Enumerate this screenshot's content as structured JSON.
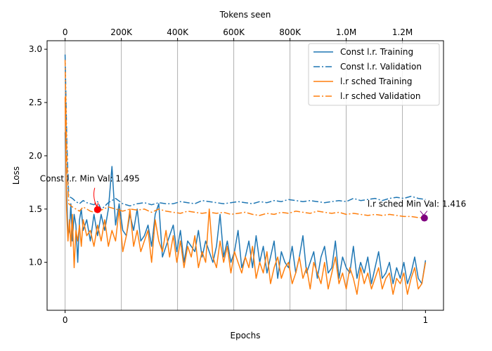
{
  "chart_data": {
    "type": "line",
    "xlabel": "Epochs",
    "ylabel": "Loss",
    "secondary_xlabel": "Tokens seen",
    "xlim": [
      -0.05,
      1.05
    ],
    "ylim": [
      0.55,
      3.08
    ],
    "x_ticks": [
      {
        "value": 0,
        "label": "0"
      },
      {
        "value": 1,
        "label": "1"
      }
    ],
    "y_ticks": [
      {
        "value": 1.0,
        "label": "1.0"
      },
      {
        "value": 1.5,
        "label": "1.5"
      },
      {
        "value": 2.0,
        "label": "2.0"
      },
      {
        "value": 2.5,
        "label": "2.5"
      },
      {
        "value": 3.0,
        "label": "3.0"
      }
    ],
    "top_ticks": [
      {
        "value": 0.0,
        "label": "0"
      },
      {
        "value": 0.156,
        "label": "200K"
      },
      {
        "value": 0.312,
        "label": "400K"
      },
      {
        "value": 0.468,
        "label": "600K"
      },
      {
        "value": 0.624,
        "label": "800K"
      },
      {
        "value": 0.78,
        "label": "1.0M"
      },
      {
        "value": 0.936,
        "label": "1.2M"
      }
    ],
    "grid": "vertical lines at top-axis ticks",
    "legend_position": "top-right",
    "series": [
      {
        "name": "Const l.r. Training",
        "color": "#1f77b4",
        "style": "solid",
        "x": [
          0,
          0.004,
          0.008,
          0.012,
          0.016,
          0.02,
          0.025,
          0.03,
          0.035,
          0.04,
          0.045,
          0.05,
          0.06,
          0.07,
          0.08,
          0.09,
          0.1,
          0.11,
          0.12,
          0.13,
          0.14,
          0.15,
          0.16,
          0.17,
          0.18,
          0.19,
          0.2,
          0.21,
          0.22,
          0.23,
          0.24,
          0.25,
          0.26,
          0.27,
          0.28,
          0.29,
          0.3,
          0.31,
          0.32,
          0.33,
          0.34,
          0.35,
          0.36,
          0.37,
          0.38,
          0.39,
          0.4,
          0.41,
          0.42,
          0.43,
          0.44,
          0.45,
          0.46,
          0.47,
          0.48,
          0.49,
          0.5,
          0.51,
          0.52,
          0.53,
          0.54,
          0.55,
          0.56,
          0.57,
          0.58,
          0.59,
          0.6,
          0.61,
          0.62,
          0.63,
          0.64,
          0.65,
          0.66,
          0.67,
          0.68,
          0.69,
          0.7,
          0.71,
          0.72,
          0.73,
          0.74,
          0.75,
          0.76,
          0.77,
          0.78,
          0.79,
          0.8,
          0.81,
          0.82,
          0.83,
          0.84,
          0.85,
          0.86,
          0.87,
          0.88,
          0.89,
          0.9,
          0.91,
          0.92,
          0.93,
          0.94,
          0.95,
          0.96,
          0.97,
          0.98,
          0.99,
          1.0
        ],
        "y": [
          2.22,
          1.7,
          1.25,
          1.3,
          1.55,
          1.2,
          1.45,
          1.35,
          1.0,
          1.4,
          1.5,
          1.3,
          1.4,
          1.2,
          1.45,
          1.25,
          1.45,
          1.3,
          1.5,
          1.9,
          1.35,
          1.55,
          1.3,
          1.25,
          1.45,
          1.3,
          1.5,
          1.2,
          1.25,
          1.35,
          1.15,
          1.45,
          1.55,
          1.05,
          1.15,
          1.25,
          1.35,
          1.1,
          1.3,
          1.0,
          1.2,
          1.15,
          1.1,
          1.3,
          1.05,
          1.2,
          1.1,
          1.0,
          1.15,
          1.45,
          1.05,
          1.2,
          1.0,
          1.1,
          1.3,
          0.95,
          1.05,
          1.2,
          0.95,
          1.25,
          1.0,
          1.15,
          0.9,
          1.05,
          1.2,
          0.85,
          1.1,
          1.0,
          0.95,
          1.15,
          0.9,
          1.05,
          1.25,
          0.9,
          1.0,
          1.1,
          0.85,
          1.05,
          1.15,
          0.9,
          0.95,
          1.2,
          0.85,
          1.05,
          0.95,
          0.9,
          1.15,
          0.85,
          1.0,
          0.9,
          1.05,
          0.8,
          0.95,
          1.1,
          0.85,
          0.9,
          1.0,
          0.8,
          0.95,
          0.85,
          1.0,
          0.8,
          0.9,
          1.05,
          0.85,
          0.8,
          1.02
        ]
      },
      {
        "name": "Const l.r. Validation",
        "color": "#1f77b4",
        "style": "dashdot",
        "x": [
          0,
          0.005,
          0.01,
          0.02,
          0.03,
          0.04,
          0.05,
          0.06,
          0.07,
          0.08,
          0.09,
          0.1,
          0.12,
          0.14,
          0.16,
          0.18,
          0.2,
          0.22,
          0.24,
          0.26,
          0.28,
          0.3,
          0.32,
          0.34,
          0.36,
          0.38,
          0.4,
          0.42,
          0.44,
          0.46,
          0.48,
          0.5,
          0.52,
          0.54,
          0.56,
          0.58,
          0.6,
          0.62,
          0.64,
          0.66,
          0.68,
          0.7,
          0.72,
          0.74,
          0.76,
          0.78,
          0.8,
          0.82,
          0.84,
          0.86,
          0.88,
          0.9,
          0.92,
          0.94,
          0.96,
          0.98,
          1.0
        ],
        "y": [
          2.95,
          2.1,
          1.62,
          1.6,
          1.57,
          1.55,
          1.58,
          1.56,
          1.55,
          1.54,
          1.57,
          1.495,
          1.56,
          1.6,
          1.55,
          1.53,
          1.55,
          1.56,
          1.54,
          1.56,
          1.55,
          1.55,
          1.57,
          1.56,
          1.55,
          1.58,
          1.57,
          1.56,
          1.55,
          1.56,
          1.57,
          1.56,
          1.55,
          1.57,
          1.56,
          1.58,
          1.57,
          1.59,
          1.58,
          1.57,
          1.58,
          1.57,
          1.56,
          1.57,
          1.58,
          1.57,
          1.6,
          1.58,
          1.59,
          1.6,
          1.58,
          1.6,
          1.61,
          1.6,
          1.62,
          1.6,
          1.59
        ]
      },
      {
        "name": "l.r sched Training",
        "color": "#ff7f0e",
        "style": "solid",
        "x": [
          0,
          0.004,
          0.008,
          0.012,
          0.016,
          0.02,
          0.025,
          0.03,
          0.035,
          0.04,
          0.045,
          0.05,
          0.06,
          0.07,
          0.08,
          0.09,
          0.1,
          0.11,
          0.12,
          0.13,
          0.14,
          0.15,
          0.16,
          0.17,
          0.18,
          0.19,
          0.2,
          0.21,
          0.22,
          0.23,
          0.24,
          0.25,
          0.26,
          0.27,
          0.28,
          0.29,
          0.3,
          0.31,
          0.32,
          0.33,
          0.34,
          0.35,
          0.36,
          0.37,
          0.38,
          0.39,
          0.4,
          0.41,
          0.42,
          0.43,
          0.44,
          0.45,
          0.46,
          0.47,
          0.48,
          0.49,
          0.5,
          0.51,
          0.52,
          0.53,
          0.54,
          0.55,
          0.56,
          0.57,
          0.58,
          0.59,
          0.6,
          0.61,
          0.62,
          0.63,
          0.64,
          0.65,
          0.66,
          0.67,
          0.68,
          0.69,
          0.7,
          0.71,
          0.72,
          0.73,
          0.74,
          0.75,
          0.76,
          0.77,
          0.78,
          0.79,
          0.8,
          0.81,
          0.82,
          0.83,
          0.84,
          0.85,
          0.86,
          0.87,
          0.88,
          0.89,
          0.9,
          0.91,
          0.92,
          0.93,
          0.94,
          0.95,
          0.96,
          0.97,
          0.98,
          0.99,
          1.0
        ],
        "y": [
          2.55,
          1.5,
          1.2,
          1.4,
          1.15,
          1.45,
          0.95,
          1.3,
          1.2,
          1.35,
          1.15,
          1.4,
          1.25,
          1.3,
          1.15,
          1.35,
          1.2,
          1.4,
          1.15,
          1.3,
          1.2,
          1.5,
          1.1,
          1.25,
          1.5,
          1.15,
          1.3,
          1.1,
          1.2,
          1.3,
          1.0,
          1.4,
          1.2,
          1.1,
          1.3,
          1.05,
          1.25,
          1.0,
          1.2,
          0.95,
          1.15,
          1.05,
          1.25,
          0.95,
          1.1,
          1.0,
          1.5,
          1.05,
          0.95,
          1.2,
          1.0,
          1.15,
          0.9,
          1.1,
          1.0,
          0.9,
          1.05,
          0.95,
          1.15,
          0.85,
          1.0,
          0.9,
          1.1,
          0.8,
          0.95,
          1.05,
          0.85,
          0.95,
          1.0,
          0.8,
          0.9,
          1.05,
          0.85,
          0.95,
          0.75,
          1.0,
          0.9,
          0.8,
          1.0,
          0.75,
          0.9,
          1.05,
          0.8,
          0.9,
          0.75,
          0.95,
          0.85,
          0.7,
          0.95,
          0.8,
          0.9,
          0.75,
          0.85,
          0.95,
          0.75,
          0.85,
          0.9,
          0.7,
          0.85,
          0.8,
          0.9,
          0.7,
          0.85,
          0.95,
          0.75,
          0.8,
          1.0
        ]
      },
      {
        "name": "l.r sched Validation",
        "color": "#ff7f0e",
        "style": "dashdot",
        "x": [
          0,
          0.005,
          0.01,
          0.02,
          0.03,
          0.04,
          0.05,
          0.06,
          0.07,
          0.08,
          0.09,
          0.1,
          0.12,
          0.14,
          0.16,
          0.18,
          0.2,
          0.22,
          0.24,
          0.26,
          0.28,
          0.3,
          0.32,
          0.34,
          0.36,
          0.38,
          0.4,
          0.42,
          0.44,
          0.46,
          0.48,
          0.5,
          0.52,
          0.54,
          0.56,
          0.58,
          0.6,
          0.62,
          0.64,
          0.66,
          0.68,
          0.7,
          0.72,
          0.74,
          0.76,
          0.78,
          0.8,
          0.82,
          0.84,
          0.86,
          0.88,
          0.9,
          0.92,
          0.94,
          0.96,
          0.98,
          1.0
        ],
        "y": [
          2.9,
          1.95,
          1.55,
          1.52,
          1.5,
          1.48,
          1.52,
          1.5,
          1.48,
          1.47,
          1.5,
          1.49,
          1.52,
          1.5,
          1.48,
          1.5,
          1.49,
          1.5,
          1.47,
          1.5,
          1.48,
          1.47,
          1.46,
          1.48,
          1.47,
          1.46,
          1.47,
          1.46,
          1.47,
          1.45,
          1.46,
          1.47,
          1.45,
          1.44,
          1.46,
          1.45,
          1.47,
          1.46,
          1.48,
          1.47,
          1.46,
          1.48,
          1.47,
          1.46,
          1.47,
          1.45,
          1.46,
          1.45,
          1.44,
          1.45,
          1.44,
          1.45,
          1.44,
          1.43,
          1.43,
          1.42,
          1.416
        ]
      }
    ],
    "annotations": [
      {
        "text": "Const l.r. Min Val: 1.495",
        "x": 0.09,
        "y": 1.495,
        "color": "#ff0000"
      },
      {
        "text": "l.r sched Min Val: 1.416",
        "x": 0.997,
        "y": 1.416,
        "color": "#800080"
      }
    ]
  }
}
